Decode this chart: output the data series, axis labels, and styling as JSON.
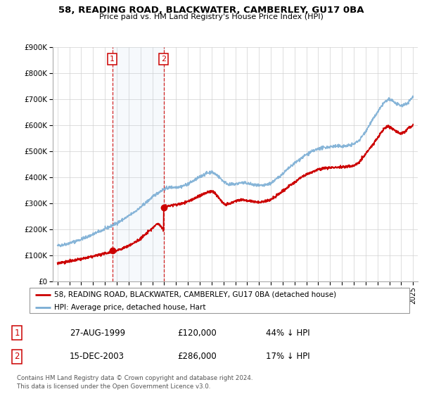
{
  "title": "58, READING ROAD, BLACKWATER, CAMBERLEY, GU17 0BA",
  "subtitle": "Price paid vs. HM Land Registry's House Price Index (HPI)",
  "legend_line1": "58, READING ROAD, BLACKWATER, CAMBERLEY, GU17 0BA (detached house)",
  "legend_line2": "HPI: Average price, detached house, Hart",
  "footnote": "Contains HM Land Registry data © Crown copyright and database right 2024.\nThis data is licensed under the Open Government Licence v3.0.",
  "sale1_date": "27-AUG-1999",
  "sale1_price": 120000,
  "sale1_label": "44% ↓ HPI",
  "sale2_date": "15-DEC-2003",
  "sale2_price": 286000,
  "sale2_label": "17% ↓ HPI",
  "hpi_color": "#7aadd4",
  "price_color": "#cc0000",
  "background_color": "#ffffff",
  "ylim": [
    0,
    900000
  ],
  "yticks": [
    0,
    100000,
    200000,
    300000,
    400000,
    500000,
    600000,
    700000,
    800000,
    900000
  ],
  "sale1_x": 1999.622,
  "sale2_x": 2003.958,
  "hpi_waypoints_x": [
    1995.0,
    1995.5,
    1996.0,
    1996.5,
    1997.0,
    1997.5,
    1998.0,
    1998.5,
    1999.0,
    1999.5,
    2000.0,
    2000.5,
    2001.0,
    2001.5,
    2002.0,
    2002.5,
    2003.0,
    2003.5,
    2004.0,
    2004.5,
    2005.0,
    2005.5,
    2006.0,
    2006.5,
    2007.0,
    2007.5,
    2008.0,
    2008.5,
    2009.0,
    2009.5,
    2010.0,
    2010.5,
    2011.0,
    2011.5,
    2012.0,
    2012.5,
    2013.0,
    2013.5,
    2014.0,
    2014.5,
    2015.0,
    2015.5,
    2016.0,
    2016.5,
    2017.0,
    2017.5,
    2018.0,
    2018.5,
    2019.0,
    2019.5,
    2020.0,
    2020.5,
    2021.0,
    2021.5,
    2022.0,
    2022.3,
    2022.5,
    2022.8,
    2023.0,
    2023.3,
    2023.5,
    2023.8,
    2024.0,
    2024.3,
    2024.5,
    2024.8,
    2025.0
  ],
  "hpi_waypoints_y": [
    138000,
    142000,
    148000,
    155000,
    163000,
    172000,
    182000,
    192000,
    202000,
    213000,
    225000,
    238000,
    252000,
    268000,
    285000,
    305000,
    325000,
    342000,
    356000,
    362000,
    363000,
    366000,
    375000,
    388000,
    402000,
    415000,
    422000,
    408000,
    385000,
    372000,
    375000,
    380000,
    378000,
    372000,
    368000,
    370000,
    378000,
    395000,
    415000,
    435000,
    455000,
    472000,
    488000,
    500000,
    510000,
    515000,
    518000,
    520000,
    520000,
    522000,
    528000,
    545000,
    578000,
    615000,
    650000,
    670000,
    685000,
    695000,
    700000,
    695000,
    685000,
    678000,
    675000,
    680000,
    685000,
    700000,
    710000
  ],
  "price_waypoints_x": [
    1995.0,
    1995.5,
    1996.0,
    1996.5,
    1997.0,
    1997.5,
    1998.0,
    1998.5,
    1999.0,
    1999.5,
    1999.622,
    1999.8,
    2000.0,
    2000.5,
    2001.0,
    2001.5,
    2002.0,
    2002.5,
    2003.0,
    2003.5,
    2003.958,
    2003.959,
    2004.0,
    2004.5,
    2005.0,
    2005.5,
    2006.0,
    2006.5,
    2007.0,
    2007.5,
    2008.0,
    2008.3,
    2008.7,
    2009.0,
    2009.2,
    2009.5,
    2009.8,
    2010.0,
    2010.5,
    2011.0,
    2011.5,
    2012.0,
    2012.5,
    2013.0,
    2013.5,
    2014.0,
    2014.5,
    2015.0,
    2015.5,
    2016.0,
    2016.5,
    2017.0,
    2017.5,
    2018.0,
    2018.5,
    2019.0,
    2019.5,
    2020.0,
    2020.5,
    2021.0,
    2021.5,
    2022.0,
    2022.3,
    2022.6,
    2022.9,
    2023.0,
    2023.3,
    2023.5,
    2023.8,
    2024.0,
    2024.3,
    2024.6,
    2025.0
  ],
  "price_waypoints_y": [
    72000,
    75000,
    78000,
    82000,
    87000,
    92000,
    97000,
    103000,
    108000,
    115000,
    120000,
    118000,
    120000,
    128000,
    138000,
    150000,
    165000,
    185000,
    205000,
    225000,
    200000,
    286000,
    288000,
    292000,
    296000,
    300000,
    308000,
    318000,
    330000,
    340000,
    348000,
    340000,
    318000,
    300000,
    295000,
    298000,
    305000,
    310000,
    315000,
    312000,
    308000,
    305000,
    308000,
    315000,
    330000,
    348000,
    365000,
    382000,
    398000,
    412000,
    422000,
    430000,
    435000,
    438000,
    440000,
    440000,
    442000,
    445000,
    462000,
    490000,
    520000,
    552000,
    572000,
    590000,
    598000,
    595000,
    588000,
    580000,
    572000,
    568000,
    575000,
    590000,
    600000
  ]
}
